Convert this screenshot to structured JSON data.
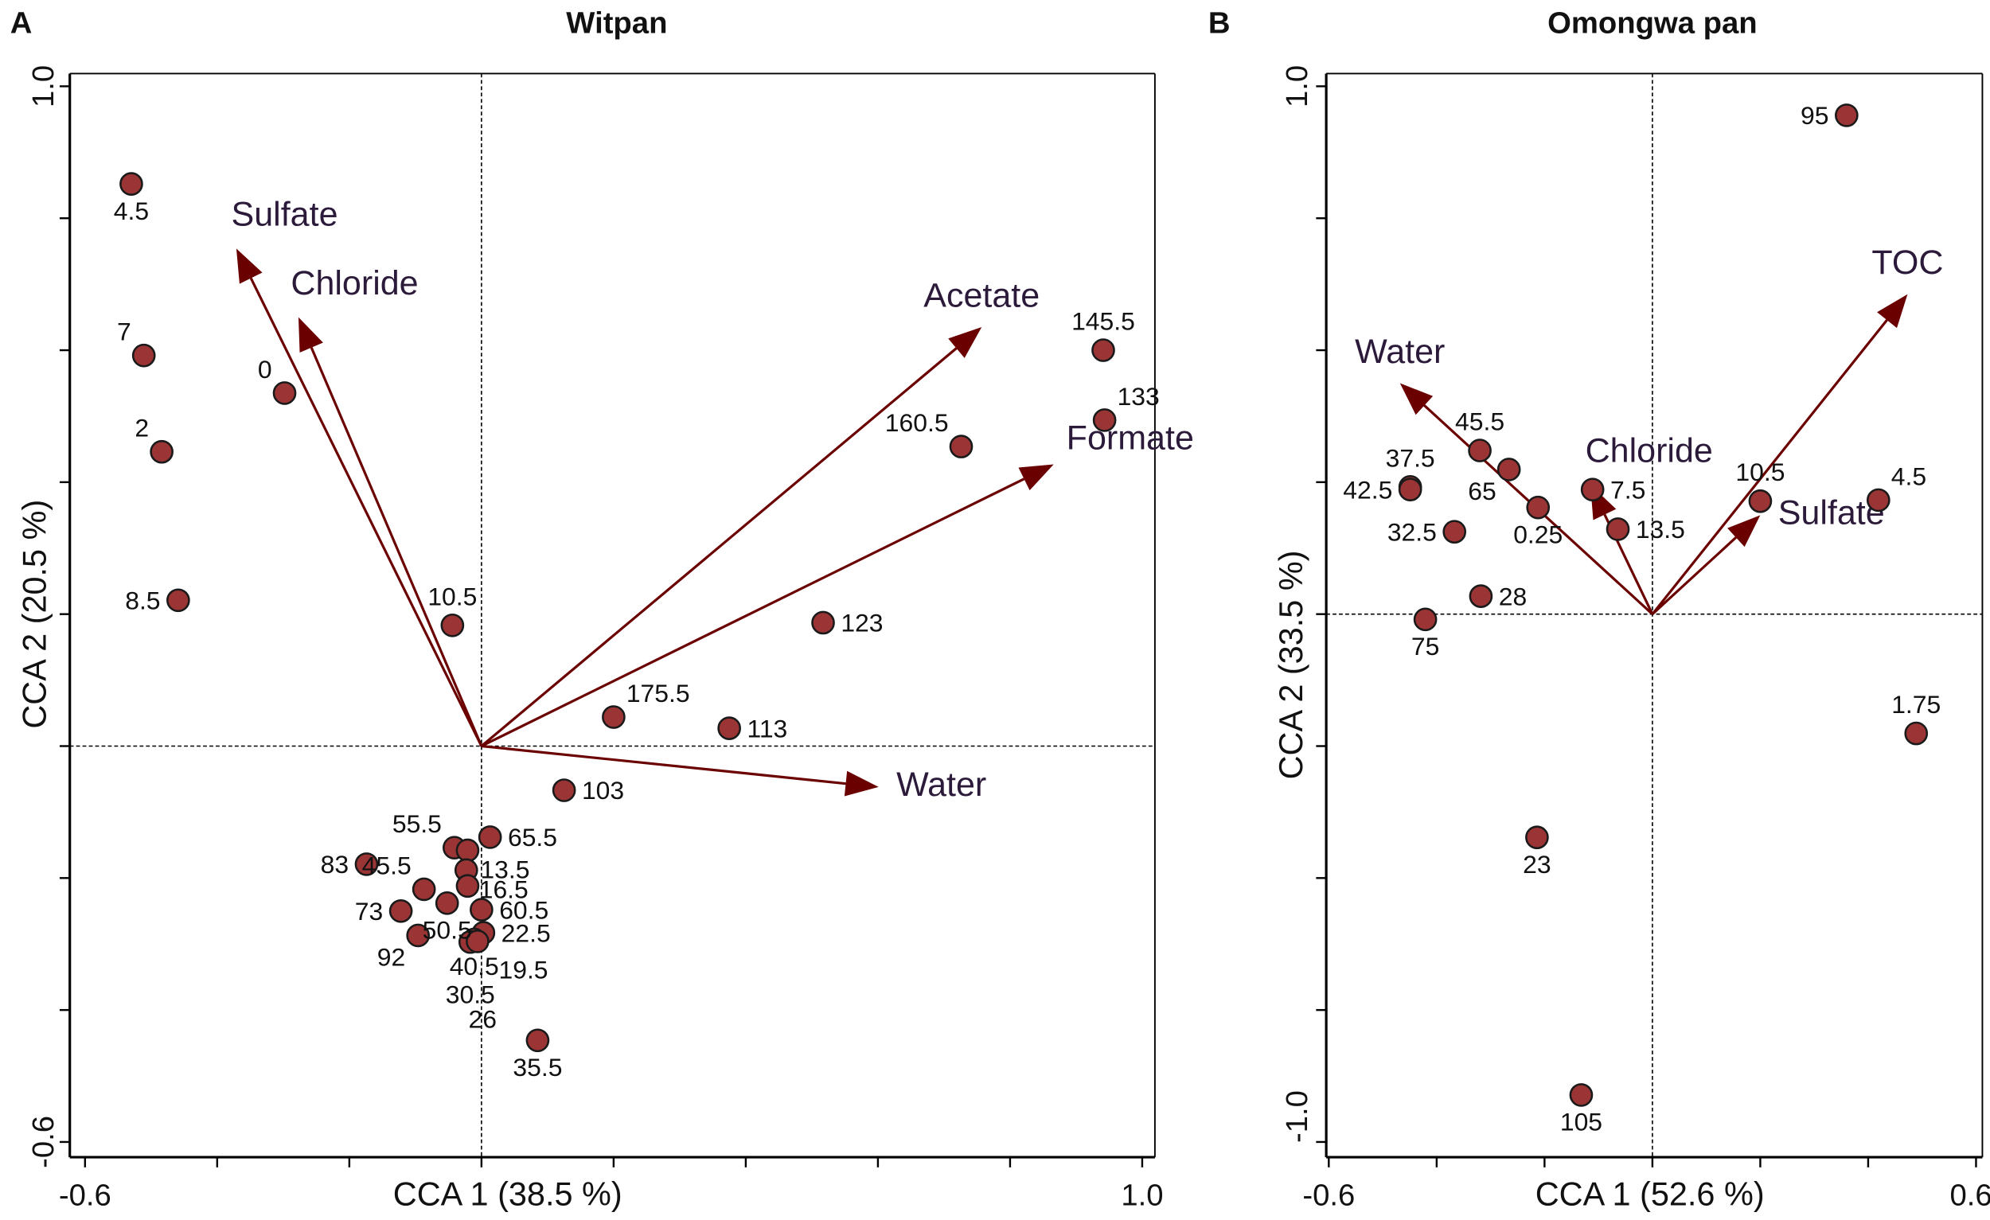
{
  "colors": {
    "point_fill": "#9b3535",
    "point_stroke": "#1a1a1a",
    "arrow": "#6b0000",
    "vector_label": "#2b1a3a"
  },
  "chart_data": [
    {
      "type": "scatter",
      "panel_letter": "A",
      "title": "Witpan",
      "xlabel": "CCA 1 (38.5 %)",
      "ylabel": "CCA 2 (20.5 %)",
      "xlim": [
        -0.6,
        1.0
      ],
      "ylim": [
        -0.6,
        1.0
      ],
      "x_tick_labels": [
        "-0.6",
        "1.0"
      ],
      "y_tick_labels": [
        "1.0",
        "-0.6"
      ],
      "grid": false,
      "reference_lines": "dashed at x=0 and y=0",
      "points": [
        {
          "label": "4.5",
          "x": -0.53,
          "y": 0.852,
          "pos": "b"
        },
        {
          "label": "7",
          "x": -0.511,
          "y": 0.592,
          "pos": "tl"
        },
        {
          "label": "2",
          "x": -0.484,
          "y": 0.446,
          "pos": "tl"
        },
        {
          "label": "8.5",
          "x": -0.459,
          "y": 0.221,
          "pos": "l"
        },
        {
          "label": "0",
          "x": -0.298,
          "y": 0.535,
          "pos": "tl"
        },
        {
          "label": "10.5",
          "x": -0.044,
          "y": 0.183,
          "pos": "t"
        },
        {
          "label": "175.5",
          "x": 0.2,
          "y": 0.044,
          "pos": "tr"
        },
        {
          "label": "113",
          "x": 0.375,
          "y": 0.027,
          "pos": "r"
        },
        {
          "label": "123",
          "x": 0.517,
          "y": 0.187,
          "pos": "r"
        },
        {
          "label": "160.5",
          "x": 0.726,
          "y": 0.454,
          "pos": "tl"
        },
        {
          "label": "145.5",
          "x": 0.941,
          "y": 0.6,
          "pos": "t"
        },
        {
          "label": "133",
          "x": 0.943,
          "y": 0.494,
          "pos": "tr"
        },
        {
          "label": "103",
          "x": 0.125,
          "y": -0.067,
          "pos": "r"
        },
        {
          "label": "65.5",
          "x": 0.013,
          "y": -0.138,
          "pos": "r"
        },
        {
          "label": "55.5",
          "x": -0.041,
          "y": -0.154,
          "pos": "tl"
        },
        {
          "label": "13.5",
          "x": -0.021,
          "y": -0.158,
          "pos": "br"
        },
        {
          "label": "16.5",
          "x": -0.023,
          "y": -0.188,
          "pos": "br"
        },
        {
          "label": "19.5",
          "x": -0.021,
          "y": -0.212,
          "pos": "none"
        },
        {
          "label": "83",
          "x": -0.174,
          "y": -0.179,
          "pos": "l"
        },
        {
          "label": "45.5",
          "x": -0.087,
          "y": -0.217,
          "pos": "tl"
        },
        {
          "label": "73",
          "x": -0.122,
          "y": -0.25,
          "pos": "l"
        },
        {
          "label": "50.5",
          "x": -0.052,
          "y": -0.238,
          "pos": "b"
        },
        {
          "label": "60.5",
          "x": 0.0,
          "y": -0.248,
          "pos": "r"
        },
        {
          "label": "92",
          "x": -0.096,
          "y": -0.287,
          "pos": "bl"
        },
        {
          "label": "22.5",
          "x": 0.003,
          "y": -0.283,
          "pos": "r"
        },
        {
          "label": "40.5",
          "x": -0.011,
          "y": -0.293,
          "pos": "b"
        },
        {
          "label": "30.5",
          "x": -0.017,
          "y": -0.297,
          "pos": "b2"
        },
        {
          "label": "26",
          "x": -0.006,
          "y": -0.296,
          "pos": "b3"
        },
        {
          "label": "35.5",
          "x": 0.085,
          "y": -0.446,
          "pos": "b"
        }
      ],
      "extra_labels": [
        {
          "label": "19.5",
          "x": 0.003,
          "y": -0.283,
          "pos": "br2"
        }
      ],
      "vectors": [
        {
          "label": "Sulfate",
          "x": -0.371,
          "y": 0.754,
          "pos": "sulfA"
        },
        {
          "label": "Chloride",
          "x": -0.277,
          "y": 0.65,
          "pos": "chlA"
        },
        {
          "label": "Acetate",
          "x": 0.757,
          "y": 0.635,
          "pos": "t"
        },
        {
          "label": "Formate",
          "x": 0.866,
          "y": 0.427,
          "pos": "tr"
        },
        {
          "label": "Water",
          "x": 0.601,
          "y": -0.062,
          "pos": "r"
        }
      ]
    },
    {
      "type": "scatter",
      "panel_letter": "B",
      "title": "Omongwa pan",
      "xlabel": "CCA 1 (52.6 %)",
      "ylabel": "CCA 2 (33.5 %)",
      "xlim": [
        -0.6,
        0.6
      ],
      "ylim": [
        -1.0,
        1.0
      ],
      "x_tick_labels": [
        "-0.6",
        "0.6"
      ],
      "y_tick_labels": [
        "1.0",
        "-1.0"
      ],
      "grid": false,
      "reference_lines": "dashed at x=0 and y=0",
      "points": [
        {
          "label": "95",
          "x": 0.36,
          "y": 0.945,
          "pos": "l"
        },
        {
          "label": "45.5",
          "x": -0.32,
          "y": 0.31,
          "pos": "t"
        },
        {
          "label": "65",
          "x": -0.266,
          "y": 0.274,
          "pos": "bl"
        },
        {
          "label": "37.5",
          "x": -0.449,
          "y": 0.241,
          "pos": "t"
        },
        {
          "label": "42.5",
          "x": -0.449,
          "y": 0.236,
          "pos": "l"
        },
        {
          "label": "0.25",
          "x": -0.212,
          "y": 0.202,
          "pos": "b"
        },
        {
          "label": "7.5",
          "x": -0.111,
          "y": 0.236,
          "pos": "r"
        },
        {
          "label": "13.5",
          "x": -0.064,
          "y": 0.161,
          "pos": "r"
        },
        {
          "label": "32.5",
          "x": -0.367,
          "y": 0.156,
          "pos": "l"
        },
        {
          "label": "28",
          "x": -0.318,
          "y": 0.034,
          "pos": "r"
        },
        {
          "label": "75",
          "x": -0.421,
          "y": -0.01,
          "pos": "b"
        },
        {
          "label": "10.5",
          "x": 0.2,
          "y": 0.214,
          "pos": "t"
        },
        {
          "label": "4.5",
          "x": 0.419,
          "y": 0.216,
          "pos": "tr"
        },
        {
          "label": "1.75",
          "x": 0.489,
          "y": -0.226,
          "pos": "t"
        },
        {
          "label": "23",
          "x": -0.214,
          "y": -0.423,
          "pos": "b"
        },
        {
          "label": "105",
          "x": -0.132,
          "y": -0.911,
          "pos": "b"
        }
      ],
      "vectors": [
        {
          "label": "Water",
          "x": -0.468,
          "y": 0.4375,
          "pos": "t"
        },
        {
          "label": "Chloride",
          "x": -0.115,
          "y": 0.245,
          "pos": "chlB"
        },
        {
          "label": "TOC",
          "x": 0.473,
          "y": 0.606,
          "pos": "t"
        },
        {
          "label": "Sulfate",
          "x": 0.2,
          "y": 0.1875,
          "pos": "r"
        }
      ]
    }
  ]
}
